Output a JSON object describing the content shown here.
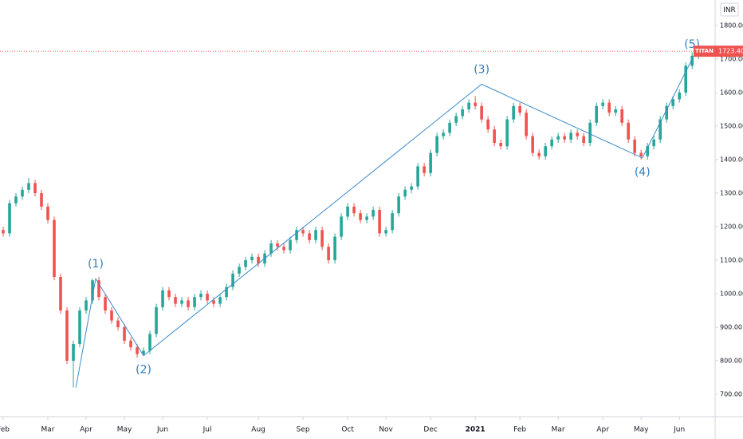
{
  "chart_data": {
    "type": "candlestick",
    "currency": "INR",
    "symbol": "TITAN",
    "last_price": {
      "value": 1723.4,
      "label": "1723.40"
    },
    "open": [
      1190,
      1180,
      1270,
      1290,
      1310,
      1330,
      1300,
      1260,
      1220,
      1050,
      950,
      800,
      850,
      950,
      980,
      1040,
      990,
      950,
      920,
      900,
      860,
      840,
      820,
      830,
      880,
      960,
      1010,
      990,
      970,
      980,
      960,
      990,
      1000,
      980,
      970,
      990,
      1020,
      1060,
      1080,
      1100,
      1110,
      1090,
      1120,
      1150,
      1140,
      1130,
      1160,
      1190,
      1180,
      1160,
      1190,
      1140,
      1100,
      1170,
      1230,
      1260,
      1240,
      1220,
      1230,
      1250,
      1180,
      1190,
      1240,
      1290,
      1310,
      1320,
      1380,
      1360,
      1420,
      1470,
      1480,
      1510,
      1530,
      1550,
      1570,
      1560,
      1520,
      1490,
      1450,
      1440,
      1520,
      1560,
      1540,
      1470,
      1420,
      1410,
      1440,
      1460,
      1470,
      1460,
      1480,
      1470,
      1450,
      1510,
      1560,
      1570,
      1540,
      1550,
      1510,
      1460,
      1420,
      1410,
      1440,
      1460,
      1520,
      1560,
      1580,
      1600,
      1680,
      1710
    ],
    "high": [
      1200,
      1280,
      1300,
      1320,
      1345,
      1340,
      1310,
      1270,
      1230,
      1060,
      960,
      860,
      960,
      990,
      1045,
      1050,
      1000,
      960,
      930,
      910,
      870,
      850,
      840,
      890,
      970,
      1020,
      1020,
      1000,
      990,
      990,
      1000,
      1010,
      1010,
      990,
      1000,
      1030,
      1070,
      1090,
      1110,
      1120,
      1120,
      1130,
      1160,
      1160,
      1150,
      1170,
      1200,
      1200,
      1190,
      1200,
      1200,
      1150,
      1180,
      1240,
      1270,
      1270,
      1250,
      1240,
      1260,
      1260,
      1200,
      1250,
      1300,
      1320,
      1330,
      1390,
      1390,
      1430,
      1480,
      1490,
      1520,
      1540,
      1560,
      1580,
      1590,
      1570,
      1530,
      1500,
      1460,
      1530,
      1570,
      1570,
      1550,
      1480,
      1430,
      1450,
      1470,
      1480,
      1480,
      1490,
      1490,
      1480,
      1520,
      1570,
      1580,
      1580,
      1560,
      1560,
      1520,
      1470,
      1430,
      1450,
      1470,
      1530,
      1570,
      1590,
      1610,
      1690,
      1720,
      1740
    ],
    "low": [
      1170,
      1170,
      1260,
      1280,
      1300,
      1290,
      1250,
      1210,
      1040,
      940,
      790,
      720,
      840,
      940,
      970,
      980,
      940,
      910,
      890,
      850,
      830,
      810,
      815,
      820,
      870,
      950,
      980,
      960,
      960,
      950,
      950,
      980,
      970,
      960,
      960,
      980,
      1010,
      1050,
      1070,
      1090,
      1080,
      1080,
      1110,
      1130,
      1120,
      1120,
      1150,
      1170,
      1150,
      1150,
      1130,
      1090,
      1090,
      1160,
      1220,
      1230,
      1210,
      1210,
      1220,
      1170,
      1170,
      1180,
      1230,
      1280,
      1300,
      1310,
      1350,
      1350,
      1410,
      1460,
      1470,
      1500,
      1520,
      1540,
      1550,
      1510,
      1480,
      1440,
      1430,
      1430,
      1510,
      1530,
      1460,
      1410,
      1400,
      1400,
      1430,
      1450,
      1450,
      1450,
      1460,
      1440,
      1440,
      1500,
      1550,
      1530,
      1530,
      1500,
      1450,
      1410,
      1400,
      1400,
      1430,
      1450,
      1510,
      1550,
      1570,
      1590,
      1670,
      1700
    ],
    "close": [
      1180,
      1270,
      1290,
      1310,
      1330,
      1300,
      1260,
      1220,
      1050,
      950,
      800,
      850,
      950,
      980,
      1040,
      990,
      950,
      920,
      900,
      860,
      840,
      820,
      830,
      880,
      960,
      1010,
      990,
      970,
      980,
      960,
      990,
      1000,
      980,
      970,
      990,
      1020,
      1060,
      1080,
      1100,
      1110,
      1090,
      1120,
      1150,
      1140,
      1130,
      1160,
      1190,
      1180,
      1160,
      1190,
      1140,
      1100,
      1170,
      1230,
      1260,
      1240,
      1220,
      1230,
      1250,
      1180,
      1190,
      1240,
      1290,
      1310,
      1320,
      1380,
      1360,
      1420,
      1470,
      1480,
      1510,
      1530,
      1550,
      1570,
      1560,
      1520,
      1490,
      1450,
      1440,
      1520,
      1560,
      1540,
      1470,
      1420,
      1410,
      1440,
      1460,
      1470,
      1460,
      1480,
      1470,
      1450,
      1510,
      1560,
      1570,
      1540,
      1550,
      1510,
      1460,
      1420,
      1410,
      1440,
      1460,
      1520,
      1560,
      1580,
      1600,
      1680,
      1710,
      1723.4
    ],
    "up_color": "#26a69a",
    "down_color": "#ef5350",
    "xlim": [
      -0.5,
      111.6
    ],
    "xticks": [
      {
        "value": 0,
        "label": "Feb"
      },
      {
        "value": 7,
        "label": "Mar"
      },
      {
        "value": 13,
        "label": "Apr"
      },
      {
        "value": 19,
        "label": "May"
      },
      {
        "value": 25,
        "label": "Jun"
      },
      {
        "value": 32,
        "label": "Jul"
      },
      {
        "value": 40,
        "label": "Aug"
      },
      {
        "value": 47,
        "label": "Sep"
      },
      {
        "value": 54,
        "label": "Oct"
      },
      {
        "value": 60,
        "label": "Nov"
      },
      {
        "value": 67,
        "label": "Dec"
      },
      {
        "value": 74,
        "label": "2021"
      },
      {
        "value": 81,
        "label": "Feb"
      },
      {
        "value": 87,
        "label": "Mar"
      },
      {
        "value": 94,
        "label": "Apr"
      },
      {
        "value": 100,
        "label": "May"
      },
      {
        "value": 106,
        "label": "Jun"
      }
    ],
    "ylim": [
      633.3,
      1876.2
    ],
    "yticks": [
      {
        "value": 1800,
        "label": "1800.00"
      },
      {
        "value": 1700,
        "label": "1700.00"
      },
      {
        "value": 1600,
        "label": "1600.00"
      },
      {
        "value": 1500,
        "label": "1500.00"
      },
      {
        "value": 1400,
        "label": "1400.00"
      },
      {
        "value": 1300,
        "label": "1300.00"
      },
      {
        "value": 1200,
        "label": "1200.00"
      },
      {
        "value": 1100,
        "label": "1100.00"
      },
      {
        "value": 1000,
        "label": "1000.00"
      },
      {
        "value": 900,
        "label": "900.00"
      },
      {
        "value": 800,
        "label": "800.00"
      },
      {
        "value": 700,
        "label": "700.00"
      }
    ],
    "wave": {
      "x": [
        11.4,
        14.5,
        22,
        75,
        100.2,
        108
      ],
      "y": [
        720,
        1045,
        815,
        1625,
        1405,
        1700
      ],
      "labels": [
        null,
        "(1)",
        "(2)",
        "(3)",
        "(4)",
        "(5)"
      ],
      "color": "#3d8bc9"
    }
  }
}
